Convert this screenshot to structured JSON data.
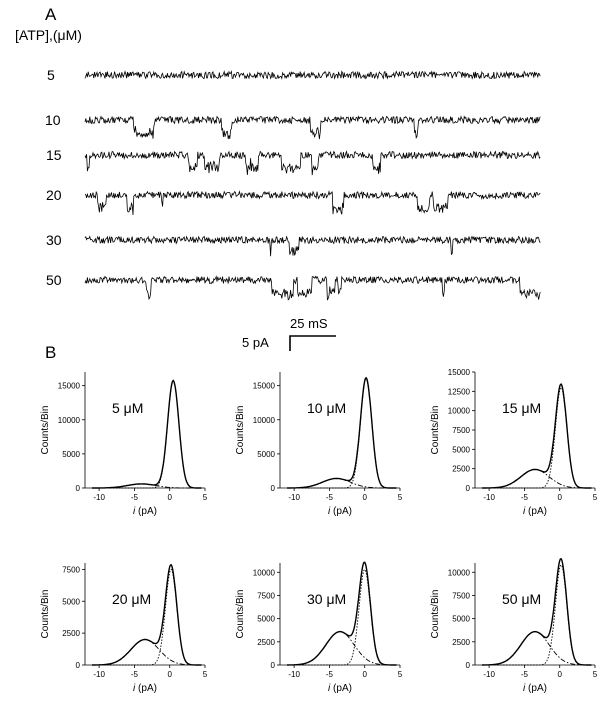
{
  "panel_a": {
    "letter": "A",
    "concentration_header": "[ATP],(μM)",
    "rows": [
      {
        "label": "5",
        "concentration_uM": 5
      },
      {
        "label": "10",
        "concentration_uM": 10
      },
      {
        "label": "15",
        "concentration_uM": 15
      },
      {
        "label": "20",
        "concentration_uM": 20
      },
      {
        "label": "30",
        "concentration_uM": 30
      },
      {
        "label": "50",
        "concentration_uM": 50
      }
    ],
    "scale_bar": {
      "time_label": "25 mS",
      "current_label": "5 pA"
    }
  },
  "panel_b": {
    "letter": "B"
  },
  "chart_data": [
    {
      "type": "line",
      "label": "5 μM",
      "xlabel": "i (pA)",
      "ylabel": "Counts/Bin",
      "xlim": [
        -12,
        5
      ],
      "ylim": [
        0,
        17000
      ],
      "xticks": [
        -10,
        -5,
        0,
        5
      ],
      "yticks": [
        0,
        5000,
        10000,
        15000
      ],
      "peak_x": 0.5,
      "peak_y": 15700,
      "shoulder_x": -4,
      "shoulder_y": 600,
      "grid": false
    },
    {
      "type": "line",
      "label": "10 μM",
      "xlabel": "i (pA)",
      "ylabel": "Counts/Bin",
      "xlim": [
        -12,
        5
      ],
      "ylim": [
        0,
        17000
      ],
      "xticks": [
        -10,
        -5,
        0,
        5
      ],
      "yticks": [
        0,
        5000,
        10000,
        15000
      ],
      "peak_x": 0.2,
      "peak_y": 16000,
      "shoulder_x": -4,
      "shoulder_y": 1400,
      "grid": false
    },
    {
      "type": "line",
      "label": "15 μM",
      "xlabel": "i (pA)",
      "ylabel": "Counts/Bin",
      "xlim": [
        -12,
        5
      ],
      "ylim": [
        0,
        15000
      ],
      "xticks": [
        -10,
        -5,
        0,
        5
      ],
      "yticks": [
        0,
        2500,
        5000,
        7500,
        10000,
        12500,
        15000
      ],
      "peak_x": 0.2,
      "peak_y": 13000,
      "shoulder_x": -3.5,
      "shoulder_y": 2400,
      "grid": false
    },
    {
      "type": "line",
      "label": "20 μM",
      "xlabel": "i (pA)",
      "ylabel": "Counts/Bin",
      "xlim": [
        -12,
        5
      ],
      "ylim": [
        0,
        8000
      ],
      "xticks": [
        -10,
        -5,
        0,
        5
      ],
      "yticks": [
        0,
        2500,
        5000,
        7500
      ],
      "peak_x": 0.2,
      "peak_y": 7500,
      "shoulder_x": -3.5,
      "shoulder_y": 2000,
      "grid": false
    },
    {
      "type": "line",
      "label": "30 μM",
      "xlabel": "i (pA)",
      "ylabel": "Counts/Bin",
      "xlim": [
        -12,
        5
      ],
      "ylim": [
        0,
        11000
      ],
      "xticks": [
        -10,
        -5,
        0,
        5
      ],
      "yticks": [
        0,
        2500,
        5000,
        7500,
        10000
      ],
      "peak_x": 0.0,
      "peak_y": 10300,
      "shoulder_x": -3.5,
      "shoulder_y": 3600,
      "grid": false
    },
    {
      "type": "line",
      "label": "50 μM",
      "xlabel": "i (pA)",
      "ylabel": "Counts/Bin",
      "xlim": [
        -12,
        5
      ],
      "ylim": [
        0,
        11000
      ],
      "xticks": [
        -10,
        -5,
        0,
        5
      ],
      "yticks": [
        0,
        2500,
        5000,
        7500,
        10000
      ],
      "peak_x": 0.2,
      "peak_y": 10800,
      "shoulder_x": -3.5,
      "shoulder_y": 3600,
      "grid": false
    }
  ]
}
